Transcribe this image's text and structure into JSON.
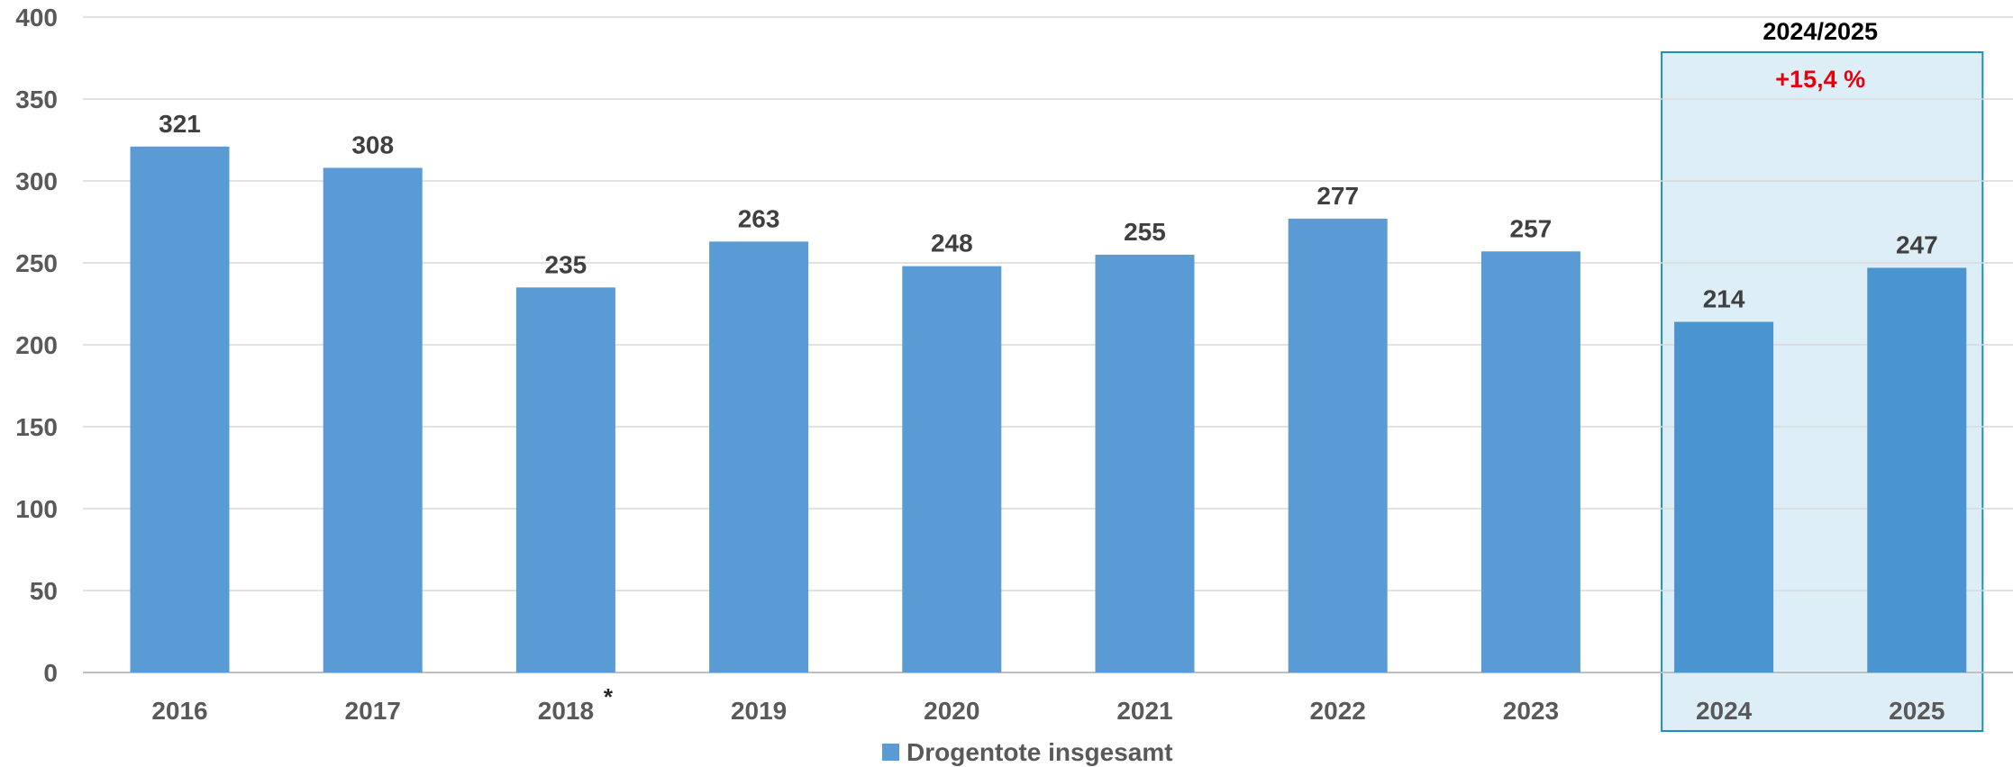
{
  "chart_data": {
    "type": "bar",
    "categories": [
      "2016",
      "2017",
      "2018",
      "2019",
      "2020",
      "2021",
      "2022",
      "2023",
      "2024",
      "2025"
    ],
    "category_marks": [
      "",
      "",
      "*",
      "",
      "",
      "",
      "",
      "",
      "",
      ""
    ],
    "series": [
      {
        "name": "Drogentote insgesamt",
        "values": [
          321,
          308,
          235,
          263,
          248,
          255,
          277,
          257,
          214,
          247
        ],
        "color": "#5b9bd5"
      }
    ],
    "ylim": [
      0,
      400
    ],
    "yticks": [
      0,
      50,
      100,
      150,
      200,
      250,
      300,
      350,
      400
    ],
    "grid": true,
    "legend_position": "bottom-center",
    "highlight": {
      "categories": [
        "2024",
        "2025"
      ],
      "title": "2024/2025",
      "change_label": "+15,4 %",
      "fill_color": "#deeef7",
      "border_color": "#1b8fc4",
      "highlight_bar_color": "#4a94cf",
      "change_color": "#e8000b"
    }
  }
}
